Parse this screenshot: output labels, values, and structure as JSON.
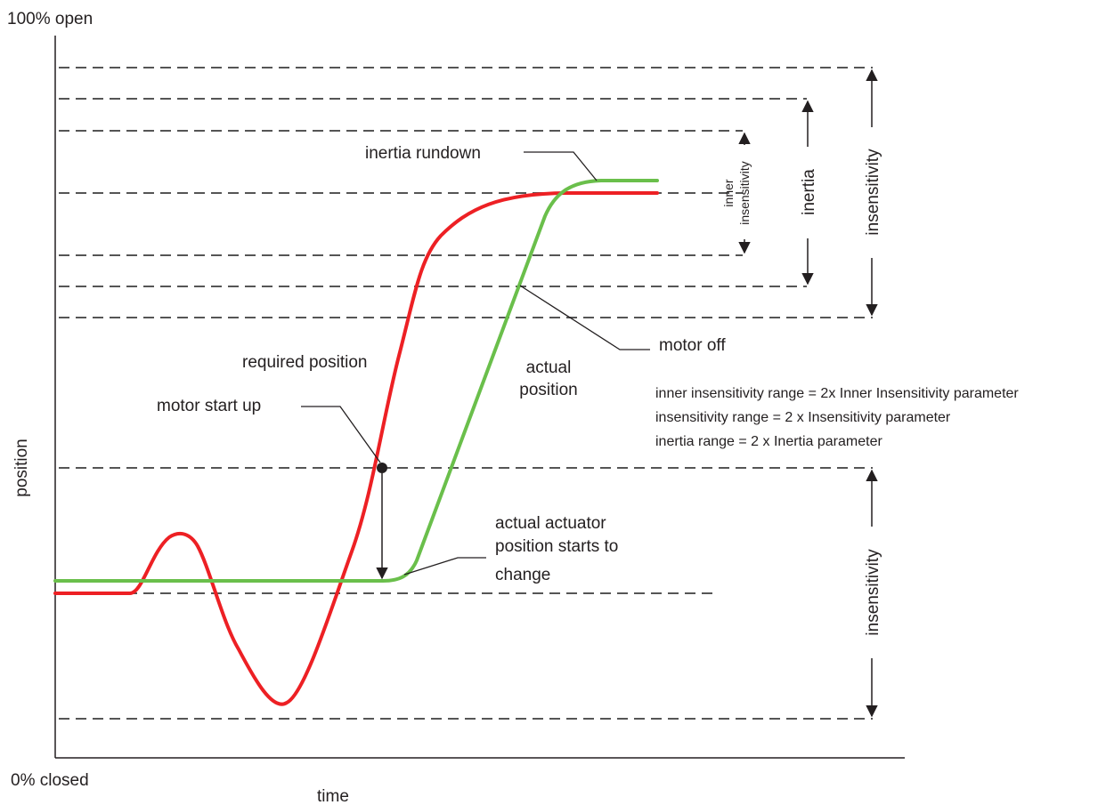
{
  "axes": {
    "y_top_label": "100% open",
    "y_bottom_label": "0% closed",
    "y_label": "position",
    "x_label": "time"
  },
  "curves": {
    "required": {
      "label": "required position",
      "color": "#ed2024"
    },
    "actual": {
      "label_line1": "actual",
      "label_line2": "position",
      "color": "#6abf4b"
    }
  },
  "annotations": {
    "inertia_rundown": "inertia rundown",
    "motor_off": "motor off",
    "motor_start_up": "motor start up",
    "actuator_change_line1": "actual actuator",
    "actuator_change_line2": "position starts to",
    "actuator_change_line3": "change"
  },
  "ranges": {
    "inner_insensitivity_line1": "inner",
    "inner_insensitivity_line2": "insensitivity",
    "inertia": "inertia",
    "insensitivity_top": "insensitivity",
    "insensitivity_bottom": "insensitivity"
  },
  "notes": [
    "inner insensitivity range = 2x Inner Insensitivity parameter",
    "insensitivity range = 2 x Insensitivity parameter",
    "inertia range = 2 x Inertia parameter"
  ]
}
